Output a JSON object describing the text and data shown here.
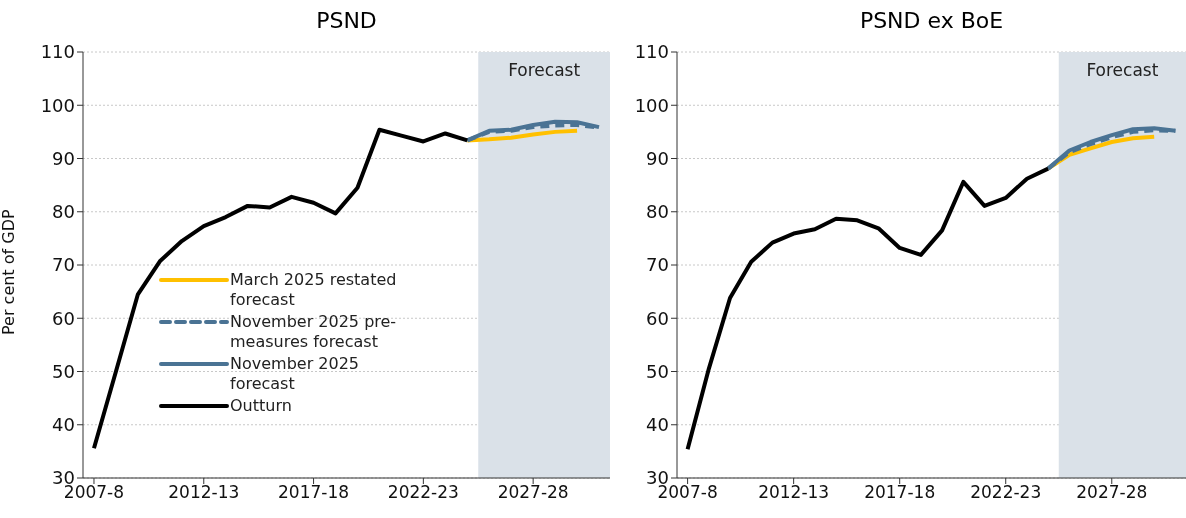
{
  "chart_data": [
    {
      "type": "line",
      "title": "PSND",
      "ylabel": "Per cent of GDP",
      "categories": [
        "2007-8",
        null,
        null,
        null,
        null,
        "2012-13",
        null,
        null,
        null,
        null,
        "2017-18",
        null,
        null,
        null,
        null,
        "2022-23",
        null,
        null,
        null,
        null,
        "2027-28",
        null,
        null,
        null
      ],
      "ylim": [
        30,
        110
      ],
      "yticks": [
        30,
        40,
        50,
        60,
        70,
        80,
        90,
        100,
        110
      ],
      "grid": "y",
      "legend": "bottom left",
      "marker": "none",
      "annotations": [
        "Forecast"
      ],
      "series": [
        {
          "name": "March 2025 restated forecast",
          "color": "#ffc000",
          "line_style": "solid",
          "values": [
            null,
            null,
            null,
            null,
            null,
            null,
            null,
            null,
            null,
            null,
            null,
            null,
            null,
            null,
            null,
            null,
            null,
            93.4,
            93.6,
            93.9,
            94.5,
            95.0,
            95.2,
            null
          ]
        },
        {
          "name": "November 2025 pre-measures forecast",
          "color": "#4a7394",
          "line_style": "dashed",
          "values": [
            null,
            null,
            null,
            null,
            null,
            null,
            null,
            null,
            null,
            null,
            null,
            null,
            null,
            null,
            null,
            null,
            null,
            93.4,
            95.0,
            95.2,
            95.9,
            96.2,
            96.3,
            95.8
          ]
        },
        {
          "name": "November 2025 forecast",
          "color": "#4a7394",
          "line_style": "solid",
          "values": [
            null,
            null,
            null,
            null,
            null,
            null,
            null,
            null,
            null,
            null,
            null,
            null,
            null,
            null,
            null,
            null,
            null,
            93.4,
            95.2,
            95.4,
            96.3,
            96.9,
            96.8,
            95.9
          ]
        },
        {
          "name": "Outturn",
          "color": "#000000",
          "line_style": "solid",
          "values": [
            35.6,
            50.0,
            64.5,
            70.7,
            74.5,
            77.3,
            79.0,
            81.1,
            80.8,
            82.8,
            81.7,
            79.7,
            84.5,
            95.4,
            94.3,
            93.2,
            94.7,
            93.4,
            null,
            null,
            null,
            null,
            null,
            null
          ]
        }
      ]
    },
    {
      "type": "line",
      "title": "PSND ex BoE",
      "categories": [
        "2007-8",
        null,
        null,
        null,
        null,
        "2012-13",
        null,
        null,
        null,
        null,
        "2017-18",
        null,
        null,
        null,
        null,
        "2022-23",
        null,
        null,
        null,
        null,
        "2027-28",
        null,
        null,
        null
      ],
      "ylim": [
        30,
        110
      ],
      "yticks": [
        30,
        40,
        50,
        60,
        70,
        80,
        90,
        100,
        110
      ],
      "grid": "y",
      "marker": "none",
      "annotations": [
        "Forecast"
      ],
      "series": [
        {
          "color": "#ffc000",
          "line_style": "solid",
          "values": [
            null,
            null,
            null,
            null,
            null,
            null,
            null,
            null,
            null,
            null,
            null,
            null,
            null,
            null,
            null,
            null,
            null,
            88.1,
            90.7,
            91.9,
            93.1,
            93.8,
            94.1,
            null
          ]
        },
        {
          "color": "#4a7394",
          "line_style": "dashed",
          "values": [
            null,
            null,
            null,
            null,
            null,
            null,
            null,
            null,
            null,
            null,
            null,
            null,
            null,
            null,
            null,
            null,
            null,
            88.1,
            91.2,
            92.7,
            94.0,
            95.0,
            95.3,
            95.2
          ]
        },
        {
          "color": "#4a7394",
          "line_style": "solid",
          "values": [
            null,
            null,
            null,
            null,
            null,
            null,
            null,
            null,
            null,
            null,
            null,
            null,
            null,
            null,
            null,
            null,
            null,
            88.1,
            91.5,
            93.1,
            94.4,
            95.5,
            95.7,
            95.2
          ]
        },
        {
          "color": "#000000",
          "line_style": "solid",
          "values": [
            35.4,
            50.5,
            63.8,
            70.6,
            74.2,
            75.9,
            76.7,
            78.7,
            78.4,
            76.9,
            73.2,
            71.9,
            76.5,
            85.6,
            81.1,
            82.6,
            86.2,
            88.1,
            null,
            null,
            null,
            null,
            null,
            null
          ]
        }
      ]
    }
  ]
}
